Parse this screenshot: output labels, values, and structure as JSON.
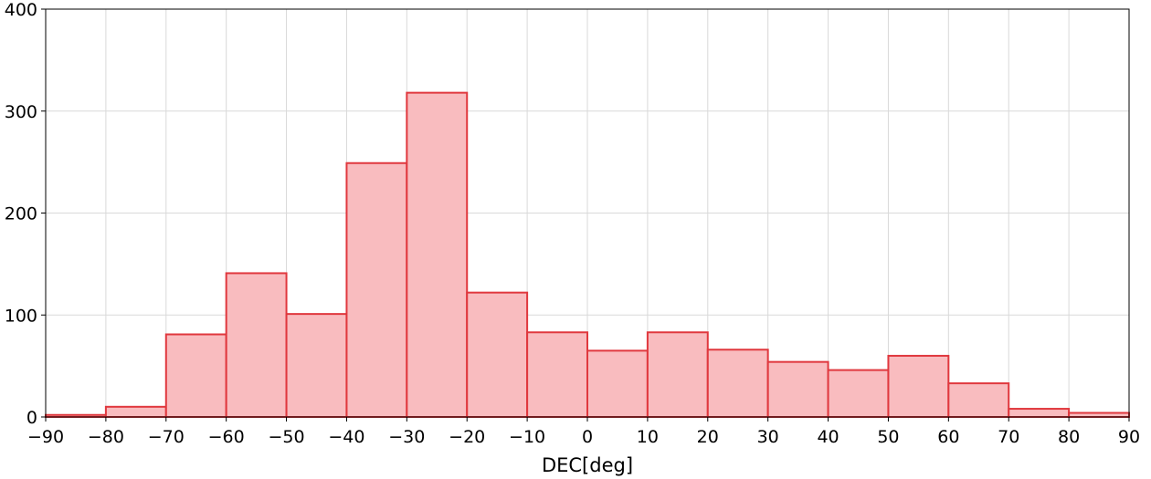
{
  "chart_data": {
    "type": "bar",
    "subtype": "histogram",
    "title": "",
    "xlabel": "DEC[deg]",
    "ylabel": "",
    "xlim": [
      -90,
      90
    ],
    "ylim": [
      0,
      400
    ],
    "grid": true,
    "legend": "none",
    "bin_edges": [
      -90,
      -80,
      -70,
      -60,
      -50,
      -40,
      -30,
      -20,
      -10,
      0,
      10,
      20,
      30,
      40,
      50,
      60,
      70,
      80,
      90
    ],
    "values": [
      2,
      10,
      81,
      141,
      101,
      249,
      318,
      122,
      83,
      65,
      83,
      66,
      54,
      46,
      60,
      33,
      8,
      4
    ],
    "x_ticks": [
      -90,
      -80,
      -70,
      -60,
      -50,
      -40,
      -30,
      -20,
      -10,
      0,
      10,
      20,
      30,
      40,
      50,
      60,
      70,
      80,
      90
    ],
    "x_tick_labels": [
      "−90",
      "−80",
      "−70",
      "−60",
      "−50",
      "−40",
      "−30",
      "−20",
      "−10",
      "0",
      "10",
      "20",
      "30",
      "40",
      "50",
      "60",
      "70",
      "80",
      "90"
    ],
    "y_ticks": [
      0,
      100,
      200,
      300,
      400
    ],
    "y_tick_labels": [
      "0",
      "100",
      "200",
      "300",
      "400"
    ],
    "colors": {
      "bar_fill": "#f9bcbf",
      "bar_edge": "#e0383e",
      "grid": "#d9d9d9",
      "axis": "#000000"
    }
  }
}
